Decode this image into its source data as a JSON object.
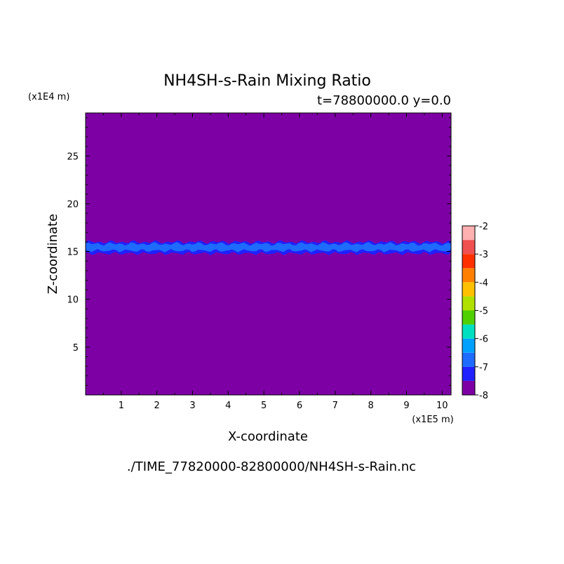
{
  "chart_data": {
    "type": "heatmap",
    "title": "NH4SH-s-Rain Mixing Ratio",
    "subtitle": "t=78800000.0 y=0.0",
    "xlabel": "X-coordinate",
    "ylabel": "Z-coordinate",
    "x_scale_label": "(x1E5 m)",
    "y_scale_label": "(x1E4 m)",
    "source_file": "./TIME_77820000-82800000/NH4SH-s-Rain.nc",
    "xlim": [
      0,
      10.25
    ],
    "ylim": [
      0,
      29.5
    ],
    "x_ticks": [
      1,
      2,
      3,
      4,
      5,
      6,
      7,
      8,
      9,
      10
    ],
    "y_ticks": [
      5,
      10,
      15,
      20,
      25
    ],
    "background_level": -8,
    "background_color": "#7d00a5",
    "bands": [
      {
        "level": -7,
        "color": "#2020ff",
        "z_bottom": 14.8,
        "z_top": 16.0
      },
      {
        "level": -6.5,
        "color": "#1e6bff",
        "z_bottom": 15.1,
        "z_top": 15.8
      }
    ],
    "colorbar": {
      "levels": [
        -8,
        -7.5,
        -7,
        -6.5,
        -6,
        -5.5,
        -5,
        -4.5,
        -4,
        -3.5,
        -3,
        -2.5,
        -2
      ],
      "tick_labels": [
        "-2",
        "-3",
        "-4",
        "-5",
        "-6",
        "-7",
        "-8"
      ],
      "tick_values": [
        -2,
        -3,
        -4,
        -5,
        -6,
        -7,
        -8
      ],
      "colors": [
        "#7d00a5",
        "#0000b4",
        "#2020ff",
        "#1e6bff",
        "#00a0ff",
        "#00e0c0",
        "#50d000",
        "#b0e000",
        "#ffc000",
        "#ff8000",
        "#ff3000",
        "#f05050",
        "#ffb0b0"
      ]
    }
  }
}
